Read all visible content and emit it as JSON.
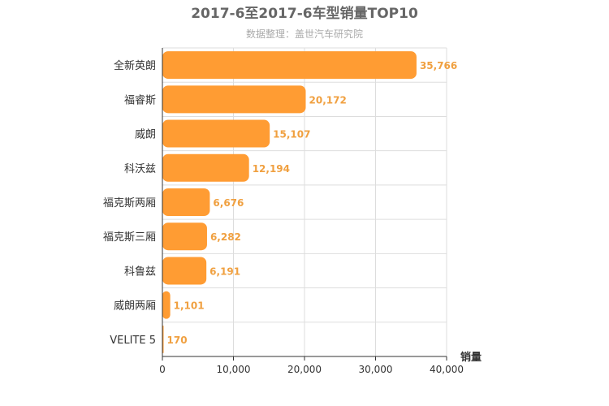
{
  "chart_data": {
    "type": "bar",
    "orientation": "horizontal",
    "title": "2017-6至2017-6车型销量TOP10",
    "subtitle": "数据整理：盖世汽车研究院",
    "xlabel": "销量",
    "ylabel": "",
    "xlim": [
      0,
      40000
    ],
    "ticks": [
      0,
      10000,
      20000,
      30000,
      40000
    ],
    "tick_labels": [
      "0",
      "10,000",
      "20,000",
      "30,000",
      "40,000"
    ],
    "categories": [
      "全新英朗",
      "福睿斯",
      "威朗",
      "科沃兹",
      "福克斯两厢",
      "福克斯三厢",
      "科鲁兹",
      "威朗两厢",
      "VELITE 5"
    ],
    "values": [
      35766,
      20172,
      15107,
      12194,
      6676,
      6282,
      6191,
      1101,
      170
    ],
    "value_labels": [
      "35,766",
      "20,172",
      "15,107",
      "12,194",
      "6,676",
      "6,282",
      "6,191",
      "1,101",
      "170"
    ],
    "grid": true,
    "colors": {
      "bar": "#ff9c33",
      "label": "#f0a040"
    }
  }
}
